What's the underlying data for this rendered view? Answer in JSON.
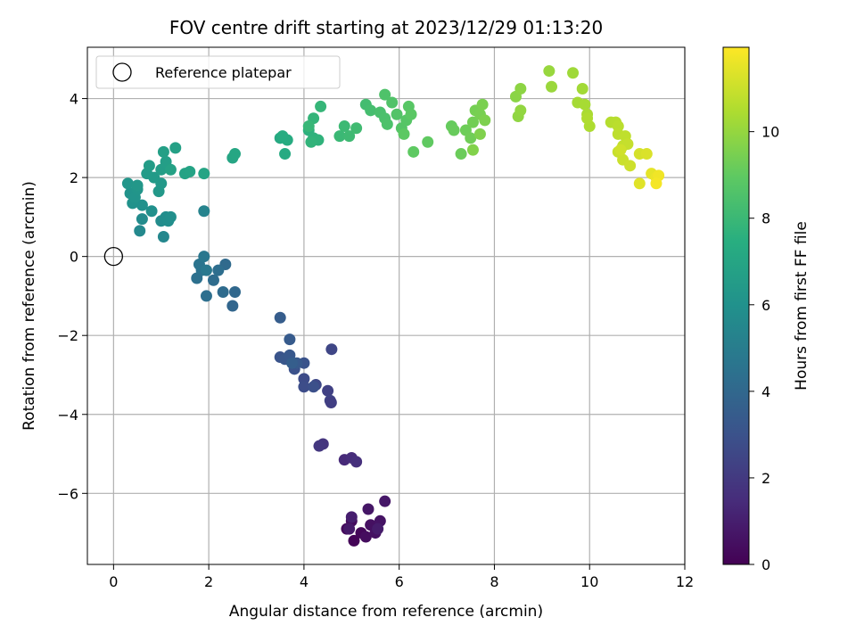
{
  "chart_data": {
    "type": "scatter",
    "title": "FOV centre drift starting at 2023/12/29 01:13:20",
    "xlabel": "Angular distance from reference (arcmin)",
    "ylabel": "Rotation from reference (arcmin)",
    "colorbar_label": "Hours from first FF file",
    "xlim": [
      -0.55,
      12.0
    ],
    "ylim": [
      -7.8,
      5.3
    ],
    "x_ticks": [
      0,
      2,
      4,
      6,
      8,
      10,
      12
    ],
    "y_ticks": [
      -6,
      -4,
      -2,
      0,
      2,
      4
    ],
    "colorbar_range": [
      0,
      11.95
    ],
    "colorbar_ticks": [
      0,
      2,
      4,
      6,
      8,
      10
    ],
    "colormap": "viridis",
    "grid": true,
    "legend": {
      "placement": "top-left",
      "entries": [
        "Reference platepar"
      ]
    },
    "reference_point": {
      "x": 0,
      "y": 0,
      "label": "Reference platepar"
    },
    "points": [
      {
        "x": 5.05,
        "y": -7.2,
        "c": 0.1
      },
      {
        "x": 5.2,
        "y": -7.0,
        "c": 0.2
      },
      {
        "x": 4.9,
        "y": -6.9,
        "c": 0.25
      },
      {
        "x": 5.0,
        "y": -6.7,
        "c": 0.35
      },
      {
        "x": 5.3,
        "y": -7.1,
        "c": 0.4
      },
      {
        "x": 5.4,
        "y": -6.8,
        "c": 0.5
      },
      {
        "x": 5.5,
        "y": -7.0,
        "c": 0.55
      },
      {
        "x": 5.6,
        "y": -6.7,
        "c": 0.6
      },
      {
        "x": 5.35,
        "y": -6.4,
        "c": 0.7
      },
      {
        "x": 5.7,
        "y": -6.2,
        "c": 0.75
      },
      {
        "x": 4.95,
        "y": -6.9,
        "c": 0.8
      },
      {
        "x": 5.55,
        "y": -6.9,
        "c": 0.9
      },
      {
        "x": 5.0,
        "y": -6.6,
        "c": 1.0
      },
      {
        "x": 4.85,
        "y": -5.15,
        "c": 1.4
      },
      {
        "x": 5.0,
        "y": -5.1,
        "c": 1.5
      },
      {
        "x": 5.1,
        "y": -5.2,
        "c": 1.6
      },
      {
        "x": 4.4,
        "y": -4.75,
        "c": 1.8
      },
      {
        "x": 4.32,
        "y": -4.8,
        "c": 1.9
      },
      {
        "x": 4.5,
        "y": -3.4,
        "c": 2.3
      },
      {
        "x": 4.55,
        "y": -3.65,
        "c": 2.4
      },
      {
        "x": 4.58,
        "y": -2.35,
        "c": 2.5
      },
      {
        "x": 4.25,
        "y": -3.25,
        "c": 2.6
      },
      {
        "x": 4.0,
        "y": -3.1,
        "c": 2.7
      },
      {
        "x": 4.0,
        "y": -3.3,
        "c": 2.8
      },
      {
        "x": 4.2,
        "y": -3.3,
        "c": 2.9
      },
      {
        "x": 3.8,
        "y": -2.85,
        "c": 3.0
      },
      {
        "x": 4.0,
        "y": -2.7,
        "c": 3.05
      },
      {
        "x": 3.5,
        "y": -2.55,
        "c": 3.1
      },
      {
        "x": 3.6,
        "y": -2.6,
        "c": 3.2
      },
      {
        "x": 3.7,
        "y": -2.5,
        "c": 3.25
      },
      {
        "x": 3.85,
        "y": -2.7,
        "c": 3.3
      },
      {
        "x": 3.7,
        "y": -2.1,
        "c": 3.4
      },
      {
        "x": 3.5,
        "y": -1.55,
        "c": 3.5
      },
      {
        "x": 3.75,
        "y": -2.7,
        "c": 3.55
      },
      {
        "x": 4.57,
        "y": -3.7,
        "c": 2.2
      },
      {
        "x": 2.5,
        "y": -1.25,
        "c": 3.9
      },
      {
        "x": 2.55,
        "y": -0.9,
        "c": 4.0
      },
      {
        "x": 2.35,
        "y": -0.2,
        "c": 4.1
      },
      {
        "x": 2.3,
        "y": -0.9,
        "c": 4.15
      },
      {
        "x": 2.1,
        "y": -0.6,
        "c": 4.2
      },
      {
        "x": 2.2,
        "y": -0.35,
        "c": 4.3
      },
      {
        "x": 1.95,
        "y": -1.0,
        "c": 4.35
      },
      {
        "x": 1.75,
        "y": -0.55,
        "c": 4.4
      },
      {
        "x": 1.85,
        "y": -0.35,
        "c": 4.5
      },
      {
        "x": 1.8,
        "y": -0.2,
        "c": 4.6
      },
      {
        "x": 1.9,
        "y": 0.0,
        "c": 4.7
      },
      {
        "x": 1.95,
        "y": -0.35,
        "c": 4.75
      },
      {
        "x": 1.9,
        "y": 1.15,
        "c": 5.3
      },
      {
        "x": 1.05,
        "y": 0.5,
        "c": 5.5
      },
      {
        "x": 0.55,
        "y": 0.65,
        "c": 5.6
      },
      {
        "x": 0.6,
        "y": 0.95,
        "c": 5.7
      },
      {
        "x": 1.0,
        "y": 0.9,
        "c": 5.75
      },
      {
        "x": 1.1,
        "y": 1.0,
        "c": 5.8
      },
      {
        "x": 1.15,
        "y": 0.9,
        "c": 5.85
      },
      {
        "x": 1.2,
        "y": 1.0,
        "c": 5.9
      },
      {
        "x": 0.8,
        "y": 1.15,
        "c": 5.95
      },
      {
        "x": 0.6,
        "y": 1.3,
        "c": 6.0
      },
      {
        "x": 0.4,
        "y": 1.35,
        "c": 6.05
      },
      {
        "x": 0.35,
        "y": 1.6,
        "c": 6.1
      },
      {
        "x": 0.45,
        "y": 1.5,
        "c": 6.15
      },
      {
        "x": 0.5,
        "y": 1.7,
        "c": 6.2
      },
      {
        "x": 0.3,
        "y": 1.85,
        "c": 6.25
      },
      {
        "x": 0.5,
        "y": 1.8,
        "c": 6.3
      },
      {
        "x": 0.95,
        "y": 1.65,
        "c": 6.35
      },
      {
        "x": 1.0,
        "y": 1.85,
        "c": 6.4
      },
      {
        "x": 0.85,
        "y": 2.0,
        "c": 6.45
      },
      {
        "x": 0.7,
        "y": 2.1,
        "c": 6.5
      },
      {
        "x": 0.75,
        "y": 2.3,
        "c": 6.55
      },
      {
        "x": 1.0,
        "y": 2.2,
        "c": 6.6
      },
      {
        "x": 1.1,
        "y": 2.4,
        "c": 6.65
      },
      {
        "x": 1.05,
        "y": 2.65,
        "c": 6.7
      },
      {
        "x": 1.3,
        "y": 2.75,
        "c": 6.75
      },
      {
        "x": 1.2,
        "y": 2.2,
        "c": 6.8
      },
      {
        "x": 1.5,
        "y": 2.1,
        "c": 6.85
      },
      {
        "x": 1.6,
        "y": 2.15,
        "c": 6.9
      },
      {
        "x": 1.9,
        "y": 2.1,
        "c": 6.95
      },
      {
        "x": 2.5,
        "y": 2.5,
        "c": 7.0
      },
      {
        "x": 2.55,
        "y": 2.6,
        "c": 7.05
      },
      {
        "x": 3.5,
        "y": 3.0,
        "c": 7.2
      },
      {
        "x": 3.6,
        "y": 2.6,
        "c": 7.25
      },
      {
        "x": 3.65,
        "y": 2.95,
        "c": 7.3
      },
      {
        "x": 3.55,
        "y": 3.05,
        "c": 7.35
      },
      {
        "x": 4.1,
        "y": 3.2,
        "c": 7.6
      },
      {
        "x": 4.2,
        "y": 3.0,
        "c": 7.65
      },
      {
        "x": 4.3,
        "y": 2.95,
        "c": 7.7
      },
      {
        "x": 4.15,
        "y": 2.9,
        "c": 7.75
      },
      {
        "x": 4.2,
        "y": 3.5,
        "c": 7.8
      },
      {
        "x": 4.35,
        "y": 3.8,
        "c": 7.85
      },
      {
        "x": 4.1,
        "y": 3.3,
        "c": 7.9
      },
      {
        "x": 4.75,
        "y": 3.05,
        "c": 8.0
      },
      {
        "x": 4.85,
        "y": 3.3,
        "c": 8.05
      },
      {
        "x": 4.95,
        "y": 3.05,
        "c": 8.1
      },
      {
        "x": 5.1,
        "y": 3.25,
        "c": 8.15
      },
      {
        "x": 5.3,
        "y": 3.85,
        "c": 8.25
      },
      {
        "x": 5.4,
        "y": 3.7,
        "c": 8.3
      },
      {
        "x": 5.6,
        "y": 3.65,
        "c": 8.4
      },
      {
        "x": 5.7,
        "y": 3.5,
        "c": 8.45
      },
      {
        "x": 5.75,
        "y": 3.35,
        "c": 8.5
      },
      {
        "x": 5.7,
        "y": 4.1,
        "c": 8.55
      },
      {
        "x": 5.85,
        "y": 3.9,
        "c": 8.6
      },
      {
        "x": 5.95,
        "y": 3.6,
        "c": 8.65
      },
      {
        "x": 6.05,
        "y": 3.25,
        "c": 8.7
      },
      {
        "x": 6.15,
        "y": 3.45,
        "c": 8.75
      },
      {
        "x": 6.2,
        "y": 3.8,
        "c": 8.8
      },
      {
        "x": 6.25,
        "y": 3.6,
        "c": 8.85
      },
      {
        "x": 6.1,
        "y": 3.1,
        "c": 8.9
      },
      {
        "x": 6.3,
        "y": 2.65,
        "c": 8.95
      },
      {
        "x": 6.6,
        "y": 2.9,
        "c": 9.0
      },
      {
        "x": 7.1,
        "y": 3.3,
        "c": 9.1
      },
      {
        "x": 7.15,
        "y": 3.2,
        "c": 9.15
      },
      {
        "x": 7.3,
        "y": 2.6,
        "c": 9.2
      },
      {
        "x": 7.4,
        "y": 3.2,
        "c": 9.25
      },
      {
        "x": 7.5,
        "y": 3.0,
        "c": 9.3
      },
      {
        "x": 7.55,
        "y": 3.4,
        "c": 9.35
      },
      {
        "x": 7.6,
        "y": 3.7,
        "c": 9.4
      },
      {
        "x": 7.7,
        "y": 3.6,
        "c": 9.45
      },
      {
        "x": 7.75,
        "y": 3.85,
        "c": 9.5
      },
      {
        "x": 7.8,
        "y": 3.45,
        "c": 9.55
      },
      {
        "x": 7.7,
        "y": 3.1,
        "c": 9.6
      },
      {
        "x": 7.55,
        "y": 2.7,
        "c": 9.65
      },
      {
        "x": 8.45,
        "y": 4.05,
        "c": 9.8
      },
      {
        "x": 8.55,
        "y": 4.25,
        "c": 9.85
      },
      {
        "x": 8.5,
        "y": 3.55,
        "c": 9.9
      },
      {
        "x": 8.55,
        "y": 3.7,
        "c": 9.95
      },
      {
        "x": 9.15,
        "y": 4.7,
        "c": 10.05
      },
      {
        "x": 9.2,
        "y": 4.3,
        "c": 10.1
      },
      {
        "x": 9.65,
        "y": 4.65,
        "c": 10.2
      },
      {
        "x": 9.85,
        "y": 4.25,
        "c": 10.25
      },
      {
        "x": 9.75,
        "y": 3.9,
        "c": 10.3
      },
      {
        "x": 9.9,
        "y": 3.85,
        "c": 10.35
      },
      {
        "x": 9.95,
        "y": 3.6,
        "c": 10.4
      },
      {
        "x": 10.0,
        "y": 3.3,
        "c": 10.45
      },
      {
        "x": 9.95,
        "y": 3.5,
        "c": 10.5
      },
      {
        "x": 10.45,
        "y": 3.4,
        "c": 10.6
      },
      {
        "x": 10.55,
        "y": 3.4,
        "c": 10.65
      },
      {
        "x": 10.6,
        "y": 3.3,
        "c": 10.7
      },
      {
        "x": 10.6,
        "y": 3.1,
        "c": 10.75
      },
      {
        "x": 10.75,
        "y": 3.05,
        "c": 10.8
      },
      {
        "x": 10.7,
        "y": 2.8,
        "c": 10.85
      },
      {
        "x": 10.8,
        "y": 2.85,
        "c": 10.9
      },
      {
        "x": 10.6,
        "y": 2.65,
        "c": 10.95
      },
      {
        "x": 10.7,
        "y": 2.45,
        "c": 11.0
      },
      {
        "x": 10.85,
        "y": 2.3,
        "c": 11.05
      },
      {
        "x": 10.65,
        "y": 2.7,
        "c": 11.1
      },
      {
        "x": 11.05,
        "y": 2.6,
        "c": 11.2
      },
      {
        "x": 11.2,
        "y": 2.6,
        "c": 11.3
      },
      {
        "x": 11.05,
        "y": 1.85,
        "c": 11.4
      },
      {
        "x": 11.3,
        "y": 2.1,
        "c": 11.5
      },
      {
        "x": 11.4,
        "y": 2.0,
        "c": 11.6
      },
      {
        "x": 11.45,
        "y": 2.05,
        "c": 11.7
      },
      {
        "x": 11.4,
        "y": 1.85,
        "c": 11.8
      }
    ]
  }
}
